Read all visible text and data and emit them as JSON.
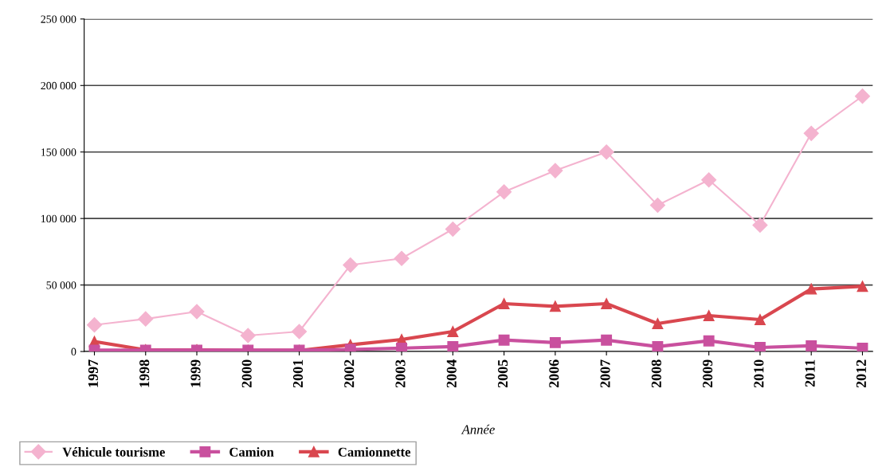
{
  "chart_data": {
    "type": "line",
    "xlabel": "Année",
    "categories": [
      "1997",
      "1998",
      "1999",
      "2000",
      "2001",
      "2002",
      "2003",
      "2004",
      "2005",
      "2006",
      "2007",
      "2008",
      "2009",
      "2010",
      "2011",
      "2012"
    ],
    "series": [
      {
        "name": "Véhicule tourisme",
        "color": "#f4b3cf",
        "marker": "diamond",
        "values": [
          20000,
          24500,
          30000,
          12000,
          15000,
          65000,
          70000,
          92000,
          120000,
          136000,
          150000,
          110000,
          129000,
          95000,
          164000,
          192000
        ]
      },
      {
        "name": "Camion",
        "color": "#c9509e",
        "marker": "square",
        "values": [
          1000,
          1000,
          1000,
          1000,
          1000,
          1500,
          2500,
          3700,
          8600,
          6700,
          8600,
          3700,
          8000,
          3000,
          4300,
          2500
        ]
      },
      {
        "name": "Camionnette",
        "color": "#d9474f",
        "marker": "triangle",
        "values": [
          7500,
          1200,
          1200,
          800,
          800,
          5000,
          9000,
          15000,
          36000,
          34000,
          36000,
          21000,
          27000,
          24000,
          47000,
          49000
        ]
      }
    ],
    "ylim": [
      0,
      250000
    ],
    "yticks": [
      {
        "value": 0,
        "label": "0"
      },
      {
        "value": 50000,
        "label": "50 000"
      },
      {
        "value": 100000,
        "label": "100 000"
      },
      {
        "value": 150000,
        "label": "150 000"
      },
      {
        "value": 200000,
        "label": "200 000"
      },
      {
        "value": 250000,
        "label": "250 000"
      }
    ],
    "grid": "y",
    "legend": "bottom left"
  }
}
